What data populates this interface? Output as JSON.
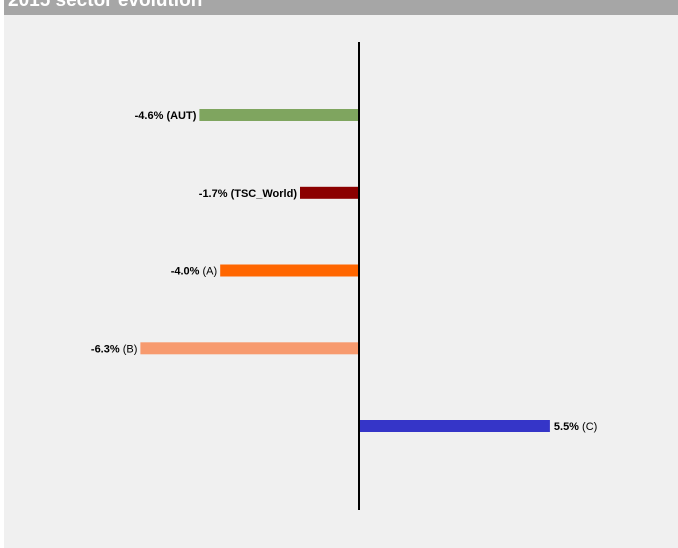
{
  "header": {
    "title": "2015 sector evolution"
  },
  "chart_data": {
    "type": "bar",
    "orientation": "horizontal",
    "title": "2015 sector evolution",
    "categories": [
      "AUT",
      "TSC_World",
      "A",
      "B",
      "C"
    ],
    "values": [
      -4.6,
      -1.7,
      -4.0,
      -6.3,
      5.5
    ],
    "unit": "%",
    "value_labels": [
      "-4.6%",
      "-1.7%",
      "-4.0%",
      "-6.3%",
      "5.5%"
    ],
    "category_labels": [
      "(AUT)",
      "(TSC_World)",
      "(A)",
      "(B)",
      "(C)"
    ],
    "category_label_bold": [
      true,
      true,
      false,
      false,
      false
    ],
    "colors": [
      "#7fa55f",
      "#8b0000",
      "#ff6600",
      "#f79a6e",
      "#3535c8"
    ],
    "grid": false,
    "legend": "none"
  }
}
